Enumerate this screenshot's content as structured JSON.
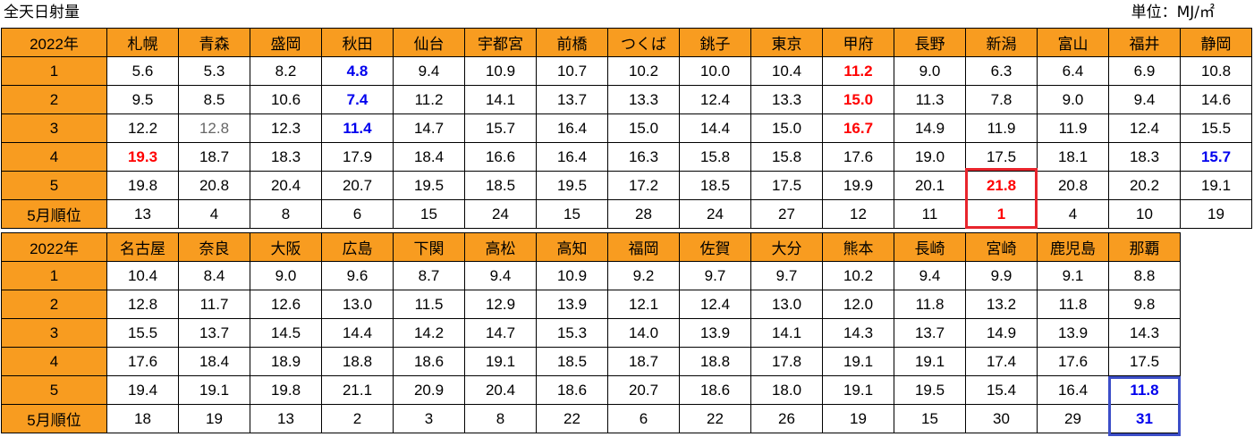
{
  "title": "全天日射量",
  "unit": "単位：MJ/㎡",
  "chart_data": [
    {
      "type": "table",
      "columns": [
        "2022年",
        "札幌",
        "青森",
        "盛岡",
        "秋田",
        "仙台",
        "宇都宮",
        "前橋",
        "つくば",
        "銚子",
        "東京",
        "甲府",
        "長野",
        "新潟",
        "富山",
        "福井",
        "静岡"
      ],
      "rows": [
        {
          "label": "1",
          "values": [
            "5.6",
            "5.3",
            "8.2",
            "4.8",
            "9.4",
            "10.9",
            "10.7",
            "10.2",
            "10.0",
            "10.4",
            "11.2",
            "9.0",
            "6.3",
            "6.4",
            "6.9",
            "10.8"
          ]
        },
        {
          "label": "2",
          "values": [
            "9.5",
            "8.5",
            "10.6",
            "7.4",
            "11.2",
            "14.1",
            "13.7",
            "13.3",
            "12.4",
            "13.3",
            "15.0",
            "11.3",
            "7.8",
            "9.0",
            "9.4",
            "14.6"
          ]
        },
        {
          "label": "3",
          "values": [
            "12.2",
            "12.8",
            "12.3",
            "11.4",
            "14.7",
            "15.7",
            "16.4",
            "15.0",
            "14.4",
            "15.0",
            "16.7",
            "14.9",
            "11.9",
            "11.9",
            "12.4",
            "15.5"
          ]
        },
        {
          "label": "4",
          "values": [
            "19.3",
            "18.7",
            "18.3",
            "17.9",
            "18.4",
            "16.6",
            "16.4",
            "16.3",
            "15.8",
            "15.8",
            "17.6",
            "19.0",
            "17.5",
            "18.1",
            "18.3",
            "15.7"
          ]
        },
        {
          "label": "5",
          "values": [
            "19.8",
            "20.8",
            "20.4",
            "20.7",
            "19.5",
            "18.5",
            "19.5",
            "17.2",
            "18.5",
            "17.5",
            "19.9",
            "20.1",
            "21.8",
            "20.8",
            "20.2",
            "19.1"
          ]
        },
        {
          "label": "5月順位",
          "values": [
            "13",
            "4",
            "8",
            "6",
            "15",
            "24",
            "15",
            "28",
            "24",
            "27",
            "12",
            "11",
            "1",
            "4",
            "10",
            "19"
          ]
        }
      ],
      "highlight_colors": {
        "max": "#ff0000",
        "min": "#0000ee",
        "grey": "#666666",
        "box_red": "#e8242c"
      },
      "styles": [
        {
          "r": 0,
          "c": 3,
          "s": "blue"
        },
        {
          "r": 1,
          "c": 3,
          "s": "blue"
        },
        {
          "r": 2,
          "c": 3,
          "s": "blue"
        },
        {
          "r": 0,
          "c": 10,
          "s": "red"
        },
        {
          "r": 1,
          "c": 10,
          "s": "red"
        },
        {
          "r": 2,
          "c": 10,
          "s": "red"
        },
        {
          "r": 2,
          "c": 1,
          "s": "grey"
        },
        {
          "r": 3,
          "c": 0,
          "s": "red"
        },
        {
          "r": 3,
          "c": 15,
          "s": "blue"
        },
        {
          "r": 4,
          "c": 12,
          "s": "red"
        },
        {
          "r": 5,
          "c": 12,
          "s": "red"
        }
      ]
    },
    {
      "type": "table",
      "columns": [
        "2022年",
        "名古屋",
        "奈良",
        "大阪",
        "広島",
        "下関",
        "高松",
        "高知",
        "福岡",
        "佐賀",
        "大分",
        "熊本",
        "長崎",
        "宮崎",
        "鹿児島",
        "那覇"
      ],
      "rows": [
        {
          "label": "1",
          "values": [
            "10.4",
            "8.4",
            "9.0",
            "9.6",
            "8.7",
            "9.4",
            "10.9",
            "9.2",
            "9.7",
            "9.7",
            "10.2",
            "9.4",
            "9.9",
            "9.1",
            "8.8"
          ]
        },
        {
          "label": "2",
          "values": [
            "12.8",
            "11.7",
            "12.6",
            "13.0",
            "11.5",
            "12.9",
            "13.9",
            "12.1",
            "12.4",
            "13.0",
            "12.0",
            "11.8",
            "13.2",
            "11.8",
            "9.8"
          ]
        },
        {
          "label": "3",
          "values": [
            "15.5",
            "13.7",
            "14.5",
            "14.4",
            "14.2",
            "14.7",
            "15.3",
            "14.0",
            "13.9",
            "14.1",
            "14.3",
            "13.7",
            "14.9",
            "13.9",
            "14.3"
          ]
        },
        {
          "label": "4",
          "values": [
            "17.6",
            "18.4",
            "18.9",
            "18.8",
            "18.6",
            "19.1",
            "18.5",
            "18.7",
            "18.8",
            "17.8",
            "19.1",
            "19.1",
            "17.4",
            "17.6",
            "17.5"
          ]
        },
        {
          "label": "5",
          "values": [
            "19.4",
            "19.1",
            "19.8",
            "21.1",
            "20.9",
            "20.4",
            "18.6",
            "20.7",
            "18.6",
            "18.0",
            "19.1",
            "19.5",
            "15.4",
            "16.4",
            "11.8"
          ]
        },
        {
          "label": "5月順位",
          "values": [
            "18",
            "19",
            "13",
            "2",
            "3",
            "8",
            "22",
            "6",
            "22",
            "26",
            "19",
            "15",
            "30",
            "29",
            "31"
          ]
        }
      ],
      "highlight_colors": {
        "min": "#0000ee",
        "box_blue": "#3c4ec8"
      },
      "styles": [
        {
          "r": 4,
          "c": 14,
          "s": "blue"
        },
        {
          "r": 5,
          "c": 14,
          "s": "blue"
        }
      ]
    }
  ]
}
